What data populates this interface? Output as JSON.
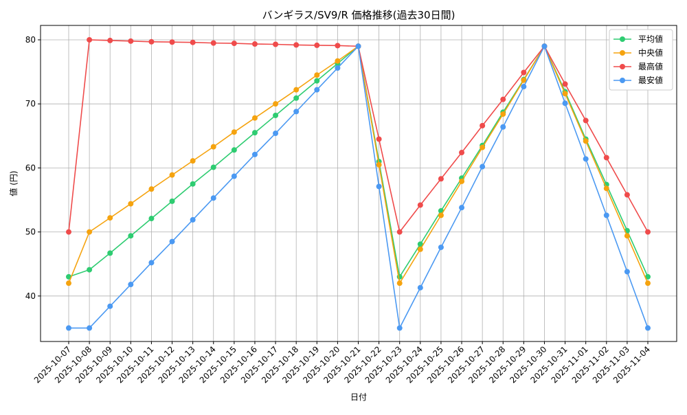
{
  "chart_data": {
    "type": "line",
    "title": "バンギラス/SV9/R 価格推移(過去30日間)",
    "xlabel": "日付",
    "ylabel": "値 (円)",
    "categories": [
      "2025-10-07",
      "2025-10-08",
      "2025-10-09",
      "2025-10-10",
      "2025-10-11",
      "2025-10-12",
      "2025-10-13",
      "2025-10-14",
      "2025-10-15",
      "2025-10-16",
      "2025-10-17",
      "2025-10-18",
      "2025-10-19",
      "2025-10-20",
      "2025-10-21",
      "2025-10-22",
      "2025-10-23",
      "2025-10-24",
      "2025-10-25",
      "2025-10-26",
      "2025-10-27",
      "2025-10-28",
      "2025-10-29",
      "2025-10-30",
      "2025-10-31",
      "2025-11-01",
      "2025-11-02",
      "2025-11-03",
      "2025-11-04"
    ],
    "series": [
      {
        "name": "平均値",
        "color": "#2ecc71",
        "values": [
          43,
          44.1,
          46.7,
          49.4,
          52.1,
          54.8,
          57.5,
          60.1,
          62.8,
          65.5,
          68.2,
          70.9,
          73.6,
          76.3,
          79,
          61,
          43,
          48.1,
          53.3,
          58.4,
          63.5,
          68.7,
          73.8,
          79,
          71.9,
          64.5,
          57.4,
          50.2,
          43
        ]
      },
      {
        "name": "中央値",
        "color": "#f5a30f",
        "values": [
          42,
          50,
          52.2,
          54.4,
          56.7,
          58.9,
          61.1,
          63.3,
          65.6,
          67.8,
          70,
          72.2,
          74.5,
          76.7,
          79,
          60.5,
          42,
          47.3,
          52.6,
          57.9,
          63.2,
          68.4,
          73.7,
          79,
          71.6,
          64.2,
          56.8,
          49.4,
          42
        ]
      },
      {
        "name": "最高値",
        "color": "#ef4b4b",
        "values": [
          50,
          80,
          79.9,
          79.8,
          79.7,
          79.65,
          79.6,
          79.5,
          79.45,
          79.35,
          79.3,
          79.2,
          79.15,
          79.1,
          79,
          64.5,
          50,
          54.2,
          58.3,
          62.4,
          66.6,
          70.7,
          74.9,
          79,
          73.1,
          67.4,
          61.6,
          55.8,
          50
        ]
      },
      {
        "name": "最安値",
        "color": "#4b99f2",
        "values": [
          35,
          35,
          38.4,
          41.8,
          45.2,
          48.5,
          51.9,
          55.3,
          58.7,
          62.1,
          65.4,
          68.8,
          72.2,
          75.6,
          79,
          57.1,
          35,
          41.3,
          47.6,
          53.8,
          60.2,
          66.4,
          72.7,
          79,
          70.1,
          61.4,
          52.6,
          43.8,
          35
        ]
      }
    ],
    "ylim": [
      32.9,
      82.25
    ],
    "yticks": [
      40,
      50,
      60,
      70,
      80
    ],
    "grid": true,
    "legend": "upper right"
  }
}
